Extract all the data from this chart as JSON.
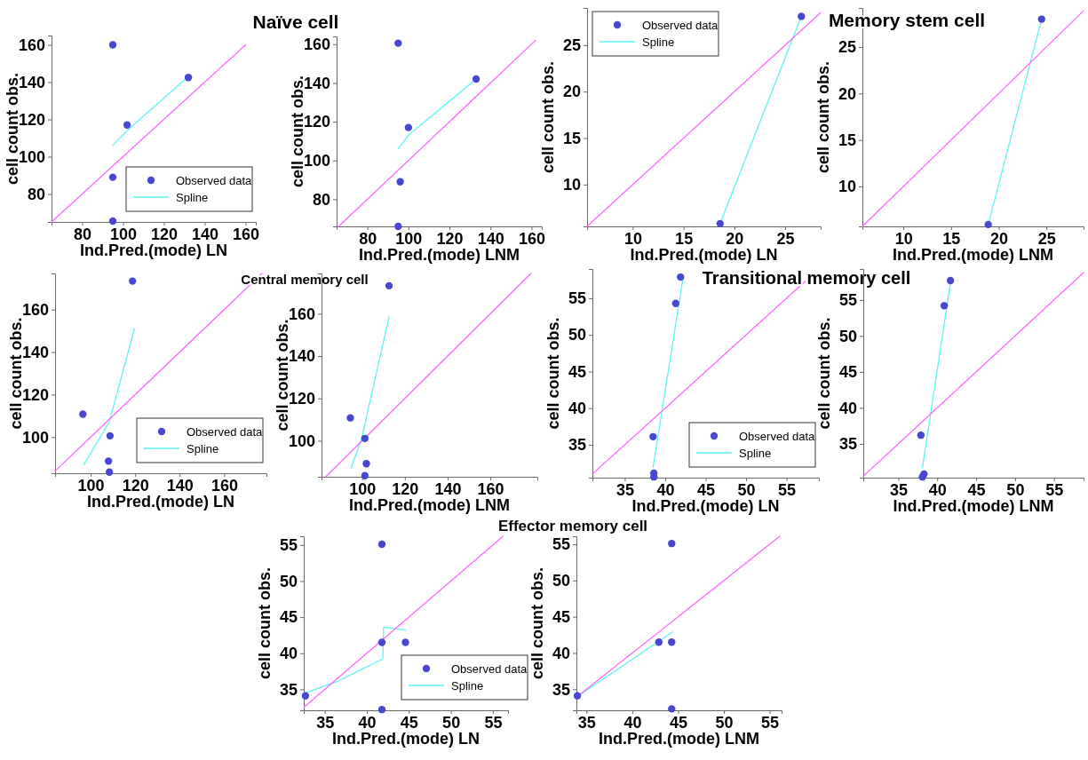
{
  "chart_data": [
    {
      "type": "scatter",
      "title": "Naïve cell",
      "xlabel": "Ind.Pred.(mode) LN",
      "ylabel": "cell count obs.",
      "xlim": [
        65,
        165
      ],
      "ylim": [
        65,
        165
      ],
      "xticks": [
        80,
        100,
        120,
        140,
        160
      ],
      "yticks": [
        80,
        100,
        120,
        140,
        160
      ],
      "legend": "bottom right",
      "series": [
        {
          "name": "Observed data",
          "marker": "circle",
          "color": "#4747d1",
          "x": [
            95,
            95,
            95,
            102,
            132
          ],
          "values": [
            160,
            89,
            65.5,
            117,
            142.5
          ]
        },
        {
          "name": "Spline",
          "type": "line",
          "marker": "none",
          "color": "#5cf3f3",
          "x": [
            95,
            103,
            131
          ],
          "values": [
            106,
            115,
            142
          ]
        },
        {
          "type": "line",
          "marker": "none",
          "color": "#ff66ff",
          "x": [
            65,
            160
          ],
          "values": [
            65,
            160
          ]
        }
      ]
    },
    {
      "type": "scatter",
      "xlabel": "Ind.Pred.(mode) LNM",
      "ylabel": "cell count obs.",
      "xlim": [
        65,
        165
      ],
      "ylim": [
        66,
        164
      ],
      "xticks": [
        80,
        100,
        120,
        140,
        160
      ],
      "yticks": [
        80,
        100,
        120,
        140,
        160
      ],
      "series": [
        {
          "marker": "circle",
          "color": "#4747d1",
          "x": [
            95,
            96,
            95,
            100,
            133
          ],
          "values": [
            160.5,
            89,
            66,
            117,
            142
          ]
        },
        {
          "type": "line",
          "marker": "none",
          "color": "#5cf3f3",
          "x": [
            95,
            100,
            133
          ],
          "values": [
            106,
            113,
            142
          ]
        },
        {
          "type": "line",
          "marker": "none",
          "color": "#ff66ff",
          "x": [
            66,
            162
          ],
          "values": [
            66,
            162
          ]
        }
      ]
    },
    {
      "type": "scatter",
      "xlabel": "Ind.Pred.(mode) LN",
      "ylabel": "cell count obs.",
      "xlim": [
        5.5,
        28.5
      ],
      "ylim": [
        5.5,
        29
      ],
      "xticks": [
        10,
        15,
        20,
        25
      ],
      "yticks": [
        10,
        15,
        20,
        25
      ],
      "legend": "top left",
      "series": [
        {
          "name": "Observed data",
          "marker": "circle",
          "color": "#4747d1",
          "x": [
            18.6,
            26.6
          ],
          "values": [
            5.8,
            28.1
          ]
        },
        {
          "name": "Spline",
          "type": "line",
          "marker": "none",
          "color": "#5cf3f3",
          "x": [
            18.6,
            26.6
          ],
          "values": [
            5.8,
            28.1
          ]
        },
        {
          "type": "line",
          "marker": "none",
          "color": "#ff66ff",
          "x": [
            5.5,
            28.5
          ],
          "values": [
            5.5,
            28.5
          ]
        }
      ]
    },
    {
      "type": "scatter",
      "title": "Memory stem cell",
      "xlabel": "Ind.Pred.(mode) LNM",
      "ylabel": "cell count obs.",
      "xlim": [
        5.7,
        28.9
      ],
      "ylim": [
        5.7,
        29.2
      ],
      "xticks": [
        10,
        15,
        20,
        25
      ],
      "yticks": [
        10,
        15,
        20,
        25
      ],
      "series": [
        {
          "marker": "circle",
          "color": "#4747d1",
          "x": [
            18.9,
            24.5
          ],
          "values": [
            5.9,
            28
          ]
        },
        {
          "type": "line",
          "marker": "none",
          "color": "#5cf3f3",
          "x": [
            18.9,
            24.5
          ],
          "values": [
            5.9,
            28
          ]
        },
        {
          "type": "line",
          "marker": "none",
          "color": "#ff66ff",
          "x": [
            5.7,
            28.9
          ],
          "values": [
            5.7,
            28.9
          ]
        }
      ]
    },
    {
      "type": "scatter",
      "title": "Central memory cell",
      "xlabel": "Ind.Pred.(mode) LN",
      "ylabel": "cell count obs.",
      "xlim": [
        84,
        179
      ],
      "ylim": [
        83,
        177
      ],
      "xticks": [
        100,
        120,
        140,
        160
      ],
      "yticks": [
        100,
        120,
        140,
        160
      ],
      "legend": "bottom right",
      "series": [
        {
          "name": "Observed data",
          "marker": "circle",
          "color": "#4747d1",
          "x": [
            96.5,
            108.7,
            108,
            108.4,
            118.8
          ],
          "values": [
            110.8,
            100.6,
            88.7,
            83.5,
            173.4
          ]
        },
        {
          "name": "Spline",
          "type": "line",
          "marker": "none",
          "color": "#5cf3f3",
          "x": [
            96.9,
            108.3,
            119.7
          ],
          "values": [
            87,
            107,
            151
          ]
        },
        {
          "type": "line",
          "marker": "none",
          "color": "#ff66ff",
          "x": [
            84,
            177
          ],
          "values": [
            84,
            177
          ]
        }
      ]
    },
    {
      "type": "scatter",
      "xlabel": "Ind.Pred.(mode) LNM",
      "ylabel": "cell count obs.",
      "xlim": [
        81,
        182
      ],
      "ylim": [
        83,
        179
      ],
      "xticks": [
        100,
        120,
        140,
        160
      ],
      "yticks": [
        100,
        120,
        140,
        160
      ],
      "series": [
        {
          "marker": "circle",
          "color": "#4747d1",
          "x": [
            94.5,
            101.3,
            102,
            101.3,
            112.6
          ],
          "values": [
            110.8,
            101.1,
            89.2,
            83.5,
            173.2
          ]
        },
        {
          "type": "line",
          "marker": "none",
          "color": "#5cf3f3",
          "x": [
            94.8,
            99.7,
            112.6
          ],
          "values": [
            87,
            100.8,
            158.4
          ]
        },
        {
          "type": "line",
          "marker": "none",
          "color": "#ff66ff",
          "x": [
            83,
            179
          ],
          "values": [
            83,
            179
          ]
        }
      ]
    },
    {
      "type": "scatter",
      "title": "Transitional memory cell",
      "xlabel": "Ind.Pred.(mode) LN",
      "ylabel": "cell count obs.",
      "xlim": [
        31,
        59
      ],
      "ylim": [
        30.5,
        59
      ],
      "xticks": [
        35,
        40,
        45,
        50,
        55
      ],
      "yticks": [
        35,
        40,
        45,
        50,
        55
      ],
      "legend": "bottom right",
      "series": [
        {
          "name": "Observed data",
          "marker": "circle",
          "color": "#4747d1",
          "x": [
            38.5,
            38.6,
            38.6,
            41.3,
            41.9
          ],
          "values": [
            36.1,
            31.1,
            30.6,
            54.3,
            57.9
          ]
        },
        {
          "name": "Spline",
          "type": "line",
          "marker": "none",
          "color": "#5cf3f3",
          "x": [
            38.5,
            42.2
          ],
          "values": [
            31.9,
            57.8
          ]
        },
        {
          "type": "line",
          "marker": "none",
          "color": "#ff66ff",
          "x": [
            31,
            57.3
          ],
          "values": [
            31,
            57.3
          ]
        }
      ]
    },
    {
      "type": "scatter",
      "xlabel": "Ind.Pred.(mode) LNM",
      "ylabel": "cell count obs.",
      "xlim": [
        30.5,
        58.8
      ],
      "ylim": [
        30.3,
        59.3
      ],
      "xticks": [
        35,
        40,
        45,
        50,
        55
      ],
      "yticks": [
        35,
        40,
        45,
        50,
        55
      ],
      "series": [
        {
          "marker": "circle",
          "color": "#4747d1",
          "x": [
            37.9,
            38.3,
            38.1,
            40.9,
            41.7
          ],
          "values": [
            36.2,
            30.8,
            30.4,
            54.2,
            57.7
          ]
        },
        {
          "type": "line",
          "marker": "none",
          "color": "#5cf3f3",
          "x": [
            38.1,
            41.7
          ],
          "values": [
            31.7,
            57.4
          ]
        },
        {
          "type": "line",
          "marker": "none",
          "color": "#ff66ff",
          "x": [
            30.5,
            58.8
          ],
          "values": [
            30.5,
            58.8
          ]
        }
      ]
    },
    {
      "type": "scatter",
      "title": "Effector memory cell",
      "xlabel": "Ind.Pred.(mode) LN",
      "ylabel": "cell count obs.",
      "xlim": [
        32.5,
        56.8
      ],
      "ylim": [
        32.1,
        56.2
      ],
      "xticks": [
        35,
        40,
        45,
        50,
        55
      ],
      "yticks": [
        35,
        40,
        45,
        50,
        55
      ],
      "legend": "bottom right",
      "series": [
        {
          "name": "Observed data",
          "marker": "circle",
          "color": "#4747d1",
          "x": [
            32.7,
            41.8,
            41.8,
            44.6,
            41.8
          ],
          "values": [
            34.1,
            41.5,
            32.2,
            41.5,
            55.1
          ]
        },
        {
          "name": "Spline",
          "type": "line",
          "marker": "none",
          "color": "#5cf3f3",
          "x": [
            32.7,
            36.5,
            41.9,
            42,
            44.6
          ],
          "values": [
            34.5,
            36.1,
            39.2,
            43.6,
            43.2
          ]
        },
        {
          "type": "line",
          "marker": "none",
          "color": "#ff66ff",
          "x": [
            32.5,
            56.2
          ],
          "values": [
            32.5,
            56.2
          ]
        }
      ]
    },
    {
      "type": "scatter",
      "xlabel": "Ind.Pred.(mode) LNM",
      "ylabel": "cell count obs.",
      "xlim": [
        33.9,
        56.3
      ],
      "ylim": [
        32.1,
        56.1
      ],
      "xticks": [
        35,
        40,
        45,
        50,
        55
      ],
      "yticks": [
        35,
        40,
        45,
        50,
        55
      ],
      "series": [
        {
          "marker": "circle",
          "color": "#4747d1",
          "x": [
            34,
            42.9,
            44.3,
            44.3,
            44.3
          ],
          "values": [
            34.1,
            41.5,
            41.5,
            55.1,
            32.3
          ]
        },
        {
          "type": "line",
          "marker": "none",
          "color": "#5cf3f3",
          "x": [
            34,
            44.4
          ],
          "values": [
            34,
            42.9
          ]
        },
        {
          "type": "line",
          "marker": "none",
          "color": "#ff66ff",
          "x": [
            33.9,
            56.1
          ],
          "values": [
            33.9,
            56.1
          ]
        }
      ]
    }
  ]
}
